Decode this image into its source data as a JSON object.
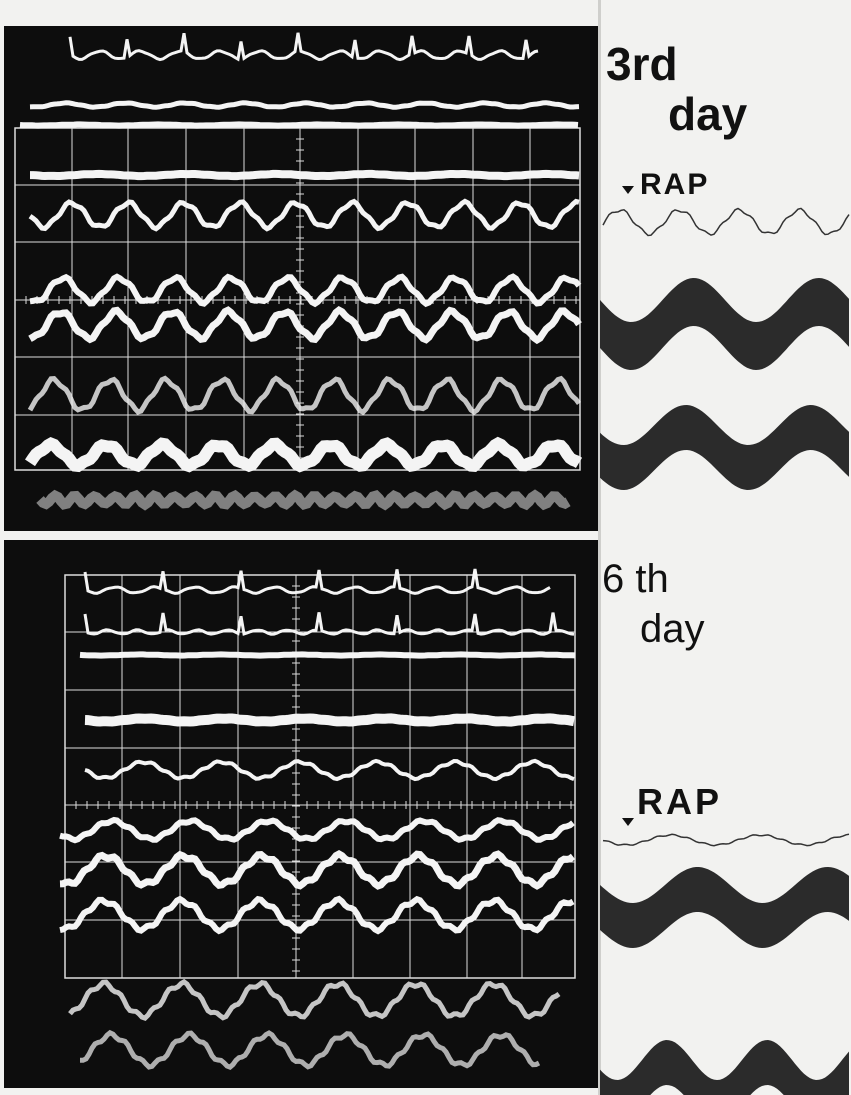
{
  "panels": [
    {
      "title_line1": "3rd",
      "title_line2": "day",
      "trace_label": "RAP"
    },
    {
      "title_line1": "6 th",
      "title_line2": "day",
      "trace_label": "RAP"
    }
  ]
}
